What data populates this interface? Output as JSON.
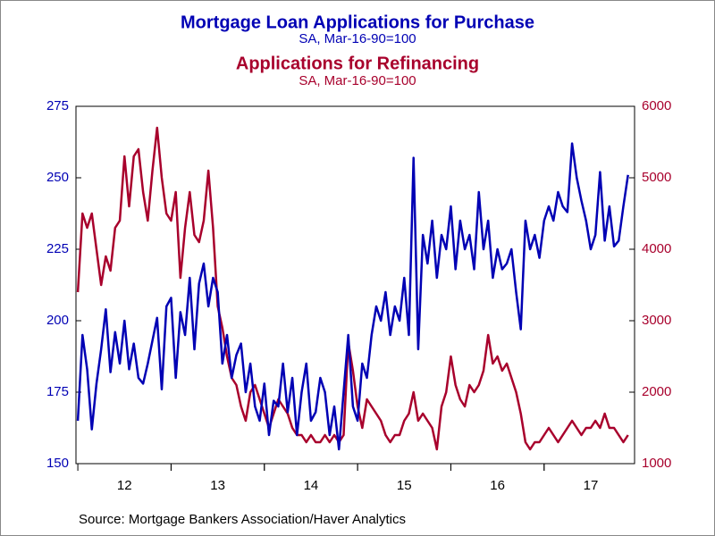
{
  "chart_data": {
    "type": "line",
    "source": "Source:  Mortgage Bankers Association/Haver Analytics",
    "x": [
      2012,
      2012.05,
      2012.1,
      2012.15,
      2012.2,
      2012.25,
      2012.3,
      2012.35,
      2012.4,
      2012.45,
      2012.5,
      2012.55,
      2012.6,
      2012.65,
      2012.7,
      2012.75,
      2012.8,
      2012.85,
      2012.9,
      2012.95,
      2013,
      2013.05,
      2013.1,
      2013.15,
      2013.2,
      2013.25,
      2013.3,
      2013.35,
      2013.4,
      2013.45,
      2013.5,
      2013.55,
      2013.6,
      2013.65,
      2013.7,
      2013.75,
      2013.8,
      2013.85,
      2013.9,
      2013.95,
      2014,
      2014.05,
      2014.1,
      2014.15,
      2014.2,
      2014.25,
      2014.3,
      2014.35,
      2014.4,
      2014.45,
      2014.5,
      2014.55,
      2014.6,
      2014.65,
      2014.7,
      2014.75,
      2014.8,
      2014.85,
      2014.9,
      2014.95,
      2015,
      2015.05,
      2015.1,
      2015.15,
      2015.2,
      2015.25,
      2015.3,
      2015.35,
      2015.4,
      2015.45,
      2015.5,
      2015.55,
      2015.6,
      2015.65,
      2015.7,
      2015.75,
      2015.8,
      2015.85,
      2015.9,
      2015.95,
      2016,
      2016.05,
      2016.1,
      2016.15,
      2016.2,
      2016.25,
      2016.3,
      2016.35,
      2016.4,
      2016.45,
      2016.5,
      2016.55,
      2016.6,
      2016.65,
      2016.7,
      2016.75,
      2016.8,
      2016.85,
      2016.9,
      2016.95,
      2017,
      2017.05,
      2017.1,
      2017.15,
      2017.2,
      2017.25,
      2017.3,
      2017.35,
      2017.4,
      2017.45,
      2017.5,
      2017.55,
      2017.6,
      2017.65,
      2017.7,
      2017.75,
      2017.8,
      2017.85,
      2017.9
    ],
    "xlim": [
      2011.98,
      2017.97
    ],
    "xticks": [
      {
        "value": 2012.5,
        "label": "12"
      },
      {
        "value": 2013.5,
        "label": "13"
      },
      {
        "value": 2014.5,
        "label": "14"
      },
      {
        "value": 2015.5,
        "label": "15"
      },
      {
        "value": 2016.5,
        "label": "16"
      },
      {
        "value": 2017.5,
        "label": "17"
      }
    ],
    "ylim": [
      150,
      275
    ],
    "yticks": [
      150,
      175,
      200,
      225,
      250,
      275
    ],
    "y2lim": [
      1000,
      6000
    ],
    "y2ticks": [
      1000,
      2000,
      3000,
      4000,
      5000,
      6000
    ],
    "series": [
      {
        "name": "Mortgage Loan Applications for Purchase",
        "subtitle": "SA, Mar-16-90=100",
        "color": "#0000b4",
        "axis": "y",
        "values": [
          165,
          195,
          183,
          162,
          178,
          190,
          204,
          182,
          196,
          185,
          200,
          183,
          192,
          180,
          178,
          185,
          193,
          201,
          176,
          205,
          208,
          180,
          203,
          195,
          215,
          190,
          213,
          220,
          205,
          215,
          210,
          185,
          195,
          180,
          188,
          192,
          175,
          185,
          170,
          165,
          178,
          160,
          172,
          170,
          185,
          168,
          180,
          160,
          175,
          185,
          165,
          168,
          180,
          175,
          160,
          170,
          155,
          175,
          195,
          170,
          165,
          185,
          180,
          195,
          205,
          200,
          210,
          195,
          205,
          200,
          215,
          195,
          257,
          190,
          230,
          220,
          235,
          215,
          230,
          225,
          240,
          218,
          235,
          225,
          230,
          218,
          245,
          225,
          235,
          215,
          225,
          218,
          220,
          225,
          210,
          197,
          235,
          225,
          230,
          222,
          235,
          240,
          235,
          245,
          240,
          238,
          262,
          250,
          242,
          235,
          225,
          230,
          252,
          228,
          240,
          226,
          228,
          240,
          251
        ]
      },
      {
        "name": "Applications for Refinancing",
        "subtitle": "SA, Mar-16-90=100",
        "color": "#a8002c",
        "axis": "y2",
        "values": [
          3400,
          4500,
          4300,
          4500,
          4000,
          3500,
          3900,
          3700,
          4300,
          4400,
          5300,
          4600,
          5300,
          5400,
          4800,
          4400,
          5100,
          5700,
          5000,
          4500,
          4400,
          4800,
          3600,
          4300,
          4800,
          4200,
          4100,
          4400,
          5100,
          4300,
          3200,
          2900,
          2500,
          2200,
          2100,
          1800,
          1600,
          2000,
          2100,
          1900,
          1700,
          1500,
          1700,
          1900,
          1800,
          1700,
          1500,
          1400,
          1400,
          1300,
          1400,
          1300,
          1300,
          1400,
          1300,
          1400,
          1300,
          1400,
          2700,
          2300,
          1800,
          1500,
          1900,
          1800,
          1700,
          1600,
          1400,
          1300,
          1400,
          1400,
          1600,
          1700,
          2000,
          1600,
          1700,
          1600,
          1500,
          1200,
          1800,
          2000,
          2500,
          2100,
          1900,
          1800,
          2100,
          2000,
          2100,
          2300,
          2800,
          2400,
          2500,
          2300,
          2400,
          2200,
          2000,
          1700,
          1300,
          1200,
          1300,
          1300,
          1400,
          1500,
          1400,
          1300,
          1400,
          1500,
          1600,
          1500,
          1400,
          1500,
          1500,
          1600,
          1500,
          1700,
          1500,
          1500,
          1400,
          1300,
          1400
        ]
      }
    ]
  }
}
